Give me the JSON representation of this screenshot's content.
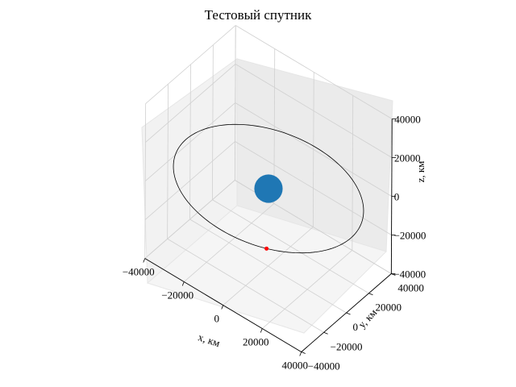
{
  "chart_data": {
    "type": "scatter3d",
    "title": "Тестовый спутник",
    "xlabel": "x, км",
    "ylabel": "y, км",
    "zlabel": "z, км",
    "xlim": [
      -40000,
      40000
    ],
    "ylim": [
      -40000,
      40000
    ],
    "zlim": [
      -40000,
      40000
    ],
    "xticks": [
      "−40000",
      "−20000",
      "0",
      "20000",
      "40000"
    ],
    "yticks": [
      "−40000",
      "−20000",
      "0",
      "20000",
      "40000"
    ],
    "zticks": [
      "−40000",
      "−20000",
      "0",
      "20000",
      "40000"
    ],
    "grid": true,
    "orbit": {
      "type": "circle",
      "radius": 42164,
      "z": 0,
      "color": "#000000"
    },
    "earth": {
      "x": 0,
      "y": 0,
      "z": 0,
      "radius": 6371,
      "color": "#1f77b4"
    },
    "satellite": {
      "x": 20300,
      "y": -37000,
      "z": 0,
      "color": "#ff0000"
    }
  }
}
